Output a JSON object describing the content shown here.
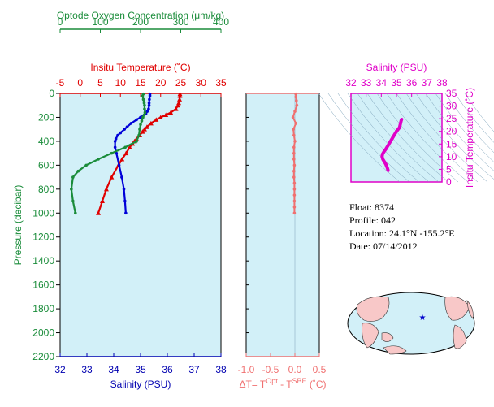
{
  "info": {
    "float": "Float:  8374",
    "profile": "Profile:  042",
    "location": "Location:  24.1°N  -155.2°E",
    "date": "Date:  07/14/2012"
  },
  "colors": {
    "background": "#d2f0f8",
    "oxygen": "#1a8c3a",
    "temperature": "#e00000",
    "salinity": "#0000d8",
    "delta": "#f07070",
    "ts": "#e000c8",
    "axis": "#0000b0",
    "land": "#f8c8c8"
  },
  "chart_data": [
    {
      "type": "line",
      "name": "profile-panel",
      "ylabel": "Pressure (decibar)",
      "ylim": [
        2200,
        0
      ],
      "yticks": [
        0,
        200,
        400,
        600,
        800,
        1000,
        1200,
        1400,
        1600,
        1800,
        2000,
        2200
      ],
      "axes": {
        "oxygen": {
          "label": "Optode Oxygen Concentration (μm/kg)",
          "range": [
            0,
            400
          ],
          "ticks": [
            0,
            100,
            200,
            300,
            400
          ]
        },
        "temperature": {
          "label": "Insitu Temperature (˚C)",
          "range": [
            -5,
            35
          ],
          "ticks": [
            -5,
            0,
            5,
            10,
            15,
            20,
            25,
            30,
            35
          ]
        },
        "salinity": {
          "label": "Salinity (PSU)",
          "range": [
            32,
            38
          ],
          "ticks": [
            32,
            33,
            34,
            35,
            36,
            37,
            38
          ]
        }
      },
      "series": [
        {
          "axis": "temperature",
          "marker": "triangle",
          "pressure": [
            5,
            20,
            50,
            80,
            100,
            130,
            160,
            180,
            200,
            220,
            250,
            280,
            300,
            320,
            350,
            380,
            400,
            420,
            450,
            500,
            550,
            600,
            700,
            800,
            900,
            1000
          ],
          "values": [
            24.8,
            24.8,
            24.7,
            24.5,
            24.3,
            23.8,
            22.5,
            21.3,
            20.0,
            18.9,
            17.6,
            16.6,
            16.0,
            15.5,
            14.8,
            14.0,
            13.5,
            13.0,
            12.3,
            11.4,
            10.4,
            9.5,
            7.8,
            6.5,
            5.5,
            4.5
          ]
        },
        {
          "axis": "salinity",
          "marker": "dot",
          "pressure": [
            5,
            20,
            50,
            80,
            100,
            130,
            150,
            170,
            200,
            220,
            250,
            280,
            300,
            330,
            350,
            380,
            400,
            450,
            500,
            600,
            700,
            800,
            900,
            1000
          ],
          "values": [
            35.35,
            35.35,
            35.33,
            35.32,
            35.32,
            35.3,
            35.25,
            35.2,
            35.0,
            34.85,
            34.65,
            34.5,
            34.4,
            34.25,
            34.15,
            34.08,
            34.05,
            34.05,
            34.1,
            34.2,
            34.3,
            34.38,
            34.42,
            34.45
          ]
        },
        {
          "axis": "oxygen",
          "marker": "dot",
          "pressure": [
            5,
            20,
            50,
            80,
            100,
            130,
            160,
            180,
            200,
            230,
            260,
            300,
            350,
            400,
            450,
            500,
            550,
            600,
            650,
            700,
            800,
            900,
            1000
          ],
          "values": [
            207,
            205,
            207,
            209,
            210,
            210,
            211,
            209,
            206,
            203,
            200,
            198,
            196,
            190,
            162,
            128,
            95,
            65,
            45,
            32,
            28,
            32,
            38
          ]
        }
      ]
    },
    {
      "type": "line",
      "name": "delta-panel",
      "xlabel": "ΔT= T^Opt - T^SBE (˚C)",
      "xlim": [
        -1.0,
        0.5
      ],
      "xticks": [
        "-1.0",
        "-0.5",
        "0.0",
        "0.5"
      ],
      "ylim": [
        2200,
        0
      ],
      "series": [
        {
          "marker": "dot",
          "pressure": [
            5,
            30,
            60,
            100,
            150,
            200,
            250,
            300,
            350,
            400,
            450,
            500,
            550,
            600,
            650,
            700,
            750,
            800,
            850,
            900,
            950,
            1000
          ],
          "values": [
            0.02,
            0.02,
            0.03,
            0.04,
            0.0,
            -0.04,
            0.02,
            -0.03,
            -0.02,
            0.0,
            -0.02,
            -0.02,
            -0.02,
            -0.01,
            -0.02,
            -0.02,
            -0.01,
            -0.01,
            -0.01,
            -0.01,
            -0.01,
            -0.01
          ]
        }
      ]
    },
    {
      "type": "scatter",
      "name": "ts-panel",
      "xlabel": "Salinity (PSU)",
      "xlim": [
        32,
        38
      ],
      "xticks": [
        32,
        33,
        34,
        35,
        36,
        37,
        38
      ],
      "ylabel": "Insitu Temperature (˚C)",
      "ylim": [
        0,
        35
      ],
      "yticks": [
        0,
        5,
        10,
        15,
        20,
        25,
        30,
        35
      ],
      "series": [
        {
          "marker": "dot",
          "salinity": [
            35.35,
            35.32,
            35.28,
            35.2,
            35.0,
            34.8,
            34.6,
            34.45,
            34.3,
            34.18,
            34.08,
            34.05,
            34.1,
            34.2,
            34.3,
            34.4,
            34.45
          ],
          "temperature": [
            24.8,
            24.5,
            23.5,
            21.5,
            20.0,
            18.0,
            16.0,
            14.5,
            13.0,
            12.0,
            11.0,
            10.0,
            9.0,
            8.0,
            7.0,
            5.5,
            4.5
          ]
        }
      ]
    }
  ]
}
